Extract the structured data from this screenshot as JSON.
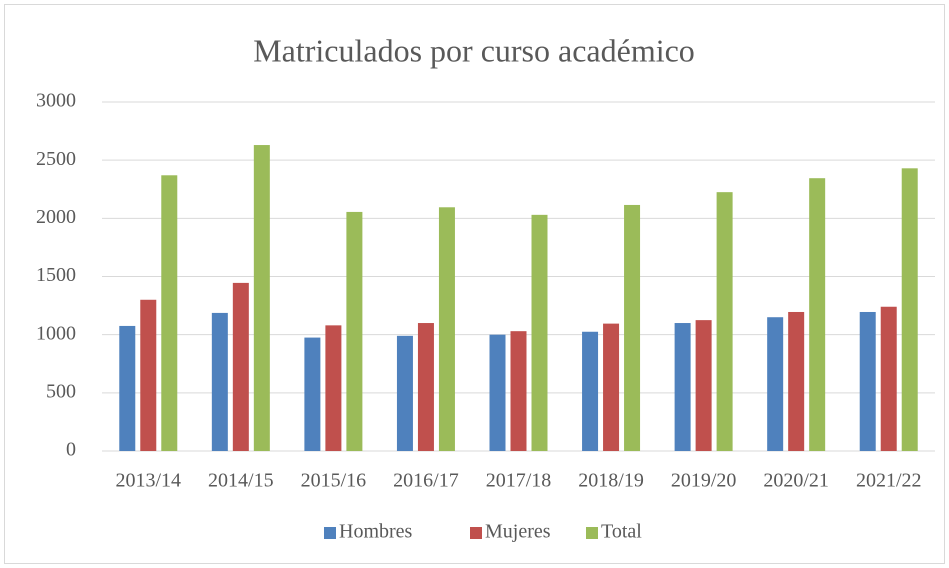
{
  "chart_data": {
    "type": "bar",
    "title": "Matriculados por curso académico",
    "categories": [
      "2013/14",
      "2014/15",
      "2015/16",
      "2016/17",
      "2017/18",
      "2018/19",
      "2019/20",
      "2020/21",
      "2021/22"
    ],
    "series": [
      {
        "name": "Hombres",
        "color": "#4f81bd",
        "values": [
          1075,
          1187,
          975,
          990,
          1000,
          1025,
          1100,
          1150,
          1195
        ]
      },
      {
        "name": "Mujeres",
        "color": "#c0504d",
        "values": [
          1300,
          1445,
          1080,
          1100,
          1030,
          1095,
          1125,
          1195,
          1240
        ]
      },
      {
        "name": "Total",
        "color": "#9bbb59",
        "values": [
          2370,
          2630,
          2055,
          2095,
          2030,
          2115,
          2225,
          2345,
          2430
        ]
      }
    ],
    "ylim": [
      0,
      3000
    ],
    "yticks": [
      0,
      500,
      1000,
      1500,
      2000,
      2500,
      3000
    ],
    "grid": true,
    "legend": "bottom"
  }
}
